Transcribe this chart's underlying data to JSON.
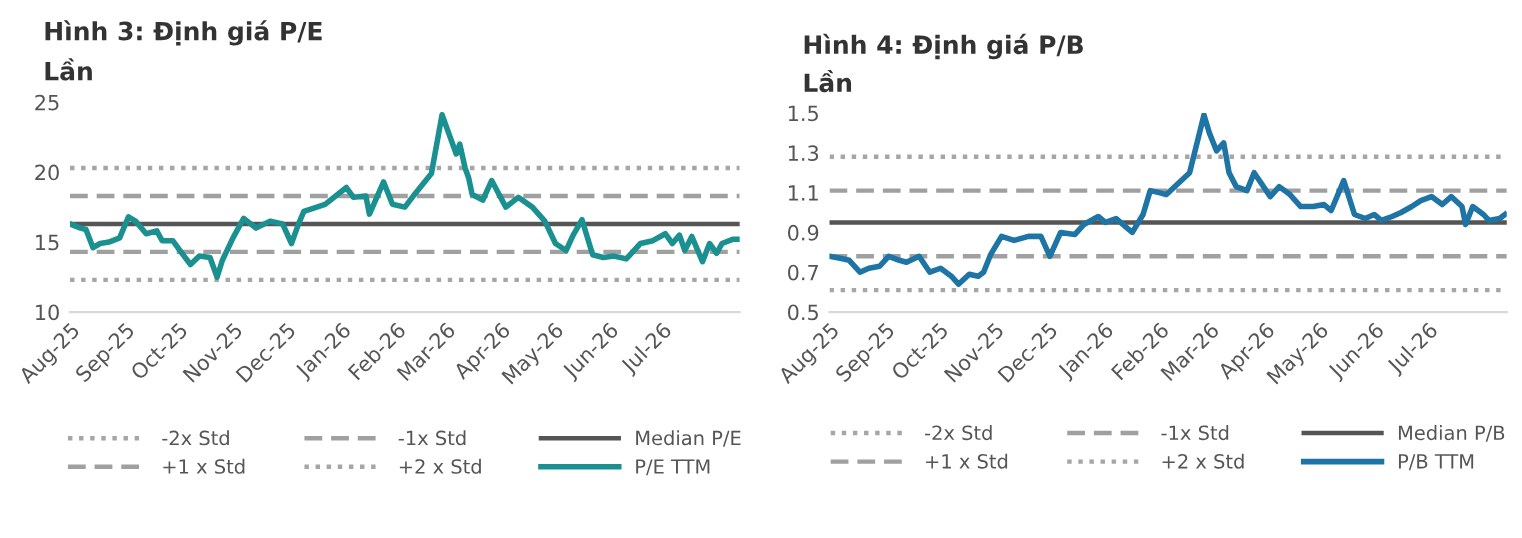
{
  "chart_data": [
    {
      "type": "line",
      "title": "Hình 3: Định giá P/E",
      "ylabel": "Lần",
      "legend": "bottom",
      "ylim": [
        10,
        25
      ],
      "yticks": [
        10,
        15,
        20,
        25
      ],
      "xlim": [
        "2025-08-01",
        "2026-08-14"
      ],
      "xticks": [
        {
          "value": "2025-08-01",
          "label": "Aug-25"
        },
        {
          "value": "2025-09-01",
          "label": "Sep-25"
        },
        {
          "value": "2025-10-01",
          "label": "Oct-25"
        },
        {
          "value": "2025-11-01",
          "label": "Nov-25"
        },
        {
          "value": "2025-12-01",
          "label": "Dec-25"
        },
        {
          "value": "2026-01-01",
          "label": "Jan-26"
        },
        {
          "value": "2026-02-01",
          "label": "Feb-26"
        },
        {
          "value": "2026-03-01",
          "label": "Mar-26"
        },
        {
          "value": "2026-04-01",
          "label": "Apr-26"
        },
        {
          "value": "2026-05-01",
          "label": "May-26"
        },
        {
          "value": "2026-06-01",
          "label": "Jun-26"
        },
        {
          "value": "2026-07-01",
          "label": "Jul-26"
        }
      ],
      "ref_lines": [
        {
          "axis": "y",
          "value": 12.3,
          "label": "-2x Std",
          "color": "#a6a6a6",
          "line_style": "dotted"
        },
        {
          "axis": "y",
          "value": 14.3,
          "label": "-1x Std",
          "color": "#a0a0a0",
          "line_style": "dashed"
        },
        {
          "axis": "y",
          "value": 16.3,
          "label": "Median P/E",
          "color": "#555555",
          "line_style": "solid"
        },
        {
          "axis": "y",
          "value": 18.3,
          "label": "+1 x Std",
          "color": "#a0a0a0",
          "line_style": "dashed"
        },
        {
          "axis": "y",
          "value": 20.3,
          "label": "+2 x Std",
          "color": "#a6a6a6",
          "line_style": "dotted"
        }
      ],
      "series": [
        {
          "name": "P/E TTM",
          "color": "#1a9090",
          "x": [
            "2025-08-01",
            "2025-08-07",
            "2025-08-10",
            "2025-08-14",
            "2025-08-18",
            "2025-08-23",
            "2025-08-29",
            "2025-09-03",
            "2025-09-07",
            "2025-09-13",
            "2025-09-19",
            "2025-09-22",
            "2025-09-28",
            "2025-10-02",
            "2025-10-08",
            "2025-10-13",
            "2025-10-19",
            "2025-10-23",
            "2025-10-26",
            "2025-11-01",
            "2025-11-07",
            "2025-11-14",
            "2025-11-22",
            "2025-11-29",
            "2025-12-04",
            "2025-12-08",
            "2025-12-11",
            "2025-12-23",
            "2026-01-04",
            "2026-01-08",
            "2026-01-15",
            "2026-01-17",
            "2026-01-25",
            "2026-01-30",
            "2026-02-06",
            "2026-02-12",
            "2026-02-21",
            "2026-02-27",
            "2026-03-03",
            "2026-03-07",
            "2026-03-09",
            "2026-03-12",
            "2026-03-14",
            "2026-03-16",
            "2026-03-22",
            "2026-03-27",
            "2026-04-04",
            "2026-04-11",
            "2026-04-19",
            "2026-04-26",
            "2026-05-02",
            "2026-05-08",
            "2026-05-12",
            "2026-05-17",
            "2026-05-23",
            "2026-05-29",
            "2026-06-04",
            "2026-06-11",
            "2026-06-19",
            "2026-06-26",
            "2026-07-03",
            "2026-07-07",
            "2026-07-11",
            "2026-07-14",
            "2026-07-18",
            "2026-07-24",
            "2026-07-28",
            "2026-08-01",
            "2026-08-04",
            "2026-08-10",
            "2026-08-13"
          ],
          "values": [
            16.3,
            16.0,
            15.9,
            14.6,
            14.9,
            15.0,
            15.3,
            16.8,
            16.5,
            15.6,
            15.8,
            15.1,
            15.1,
            14.4,
            13.4,
            14.0,
            13.9,
            12.5,
            13.7,
            15.3,
            16.7,
            16.0,
            16.5,
            16.3,
            14.9,
            16.3,
            17.2,
            17.7,
            18.9,
            18.2,
            18.3,
            17.0,
            19.3,
            17.7,
            17.5,
            18.5,
            19.9,
            24.1,
            22.7,
            21.3,
            22.0,
            20.3,
            19.6,
            18.4,
            18.0,
            19.4,
            17.5,
            18.2,
            17.5,
            16.5,
            14.9,
            14.4,
            15.5,
            16.6,
            14.1,
            13.9,
            14.0,
            13.8,
            14.9,
            15.1,
            15.6,
            14.9,
            15.5,
            14.4,
            15.4,
            13.6,
            14.9,
            14.2,
            14.9,
            15.2,
            15.2
          ]
        }
      ]
    },
    {
      "type": "line",
      "title": "Hình 4: Định giá P/B",
      "ylabel": "Lần",
      "legend": "bottom",
      "ylim": [
        0.5,
        1.5
      ],
      "yticks": [
        0.5,
        0.7,
        0.9,
        1.1,
        1.3,
        1.5
      ],
      "xlim": [
        "2025-08-01",
        "2026-08-14"
      ],
      "xticks": [
        {
          "value": "2025-08-01",
          "label": "Aug-25"
        },
        {
          "value": "2025-09-01",
          "label": "Sep-25"
        },
        {
          "value": "2025-10-01",
          "label": "Oct-25"
        },
        {
          "value": "2025-11-01",
          "label": "Nov-25"
        },
        {
          "value": "2025-12-01",
          "label": "Dec-25"
        },
        {
          "value": "2026-01-01",
          "label": "Jan-26"
        },
        {
          "value": "2026-02-01",
          "label": "Feb-26"
        },
        {
          "value": "2026-03-01",
          "label": "Mar-26"
        },
        {
          "value": "2026-04-01",
          "label": "Apr-26"
        },
        {
          "value": "2026-05-01",
          "label": "May-26"
        },
        {
          "value": "2026-06-01",
          "label": "Jun-26"
        },
        {
          "value": "2026-07-01",
          "label": "Jul-26"
        }
      ],
      "ref_lines": [
        {
          "axis": "y",
          "value": 0.61,
          "label": "-2x Std",
          "color": "#a6a6a6",
          "line_style": "dotted"
        },
        {
          "axis": "y",
          "value": 0.78,
          "label": "-1x Std",
          "color": "#a0a0a0",
          "line_style": "dashed"
        },
        {
          "axis": "y",
          "value": 0.95,
          "label": "Median P/B",
          "color": "#555555",
          "line_style": "solid"
        },
        {
          "axis": "y",
          "value": 1.11,
          "label": "+1 x Std",
          "color": "#a0a0a0",
          "line_style": "dashed"
        },
        {
          "axis": "y",
          "value": 1.28,
          "label": "+2 x Std",
          "color": "#a6a6a6",
          "line_style": "dotted"
        }
      ],
      "series": [
        {
          "name": "P/B TTM",
          "color": "#1f74a6",
          "x": [
            "2025-08-01",
            "2025-08-07",
            "2025-08-12",
            "2025-08-18",
            "2025-08-23",
            "2025-08-29",
            "2025-09-03",
            "2025-09-09",
            "2025-09-13",
            "2025-09-20",
            "2025-09-26",
            "2025-10-02",
            "2025-10-08",
            "2025-10-12",
            "2025-10-18",
            "2025-10-23",
            "2025-10-26",
            "2025-10-30",
            "2025-11-05",
            "2025-11-12",
            "2025-11-20",
            "2025-11-27",
            "2025-12-02",
            "2025-12-08",
            "2025-12-16",
            "2025-12-21",
            "2025-12-29",
            "2026-01-02",
            "2026-01-08",
            "2026-01-13",
            "2026-01-17",
            "2026-01-23",
            "2026-01-27",
            "2026-02-01",
            "2026-02-05",
            "2026-02-18",
            "2026-02-26",
            "2026-03-01",
            "2026-03-05",
            "2026-03-09",
            "2026-03-12",
            "2026-03-16",
            "2026-03-22",
            "2026-03-26",
            "2026-04-04",
            "2026-04-09",
            "2026-04-15",
            "2026-04-21",
            "2026-04-28",
            "2026-05-04",
            "2026-05-08",
            "2026-05-15",
            "2026-05-21",
            "2026-05-27",
            "2026-06-01",
            "2026-06-05",
            "2026-06-11",
            "2026-06-16",
            "2026-06-22",
            "2026-06-27",
            "2026-07-03",
            "2026-07-09",
            "2026-07-14",
            "2026-07-20",
            "2026-07-22",
            "2026-07-26",
            "2026-08-01",
            "2026-08-04",
            "2026-08-10",
            "2026-08-13"
          ],
          "values": [
            0.78,
            0.77,
            0.76,
            0.7,
            0.72,
            0.73,
            0.78,
            0.76,
            0.75,
            0.78,
            0.7,
            0.72,
            0.68,
            0.64,
            0.69,
            0.68,
            0.7,
            0.79,
            0.88,
            0.86,
            0.88,
            0.88,
            0.78,
            0.9,
            0.89,
            0.94,
            0.98,
            0.95,
            0.97,
            0.93,
            0.9,
            0.99,
            1.11,
            1.1,
            1.09,
            1.2,
            1.49,
            1.4,
            1.31,
            1.35,
            1.2,
            1.13,
            1.11,
            1.2,
            1.08,
            1.13,
            1.09,
            1.03,
            1.03,
            1.04,
            1.01,
            1.16,
            0.99,
            0.97,
            0.99,
            0.96,
            0.98,
            1.0,
            1.03,
            1.06,
            1.08,
            1.04,
            1.08,
            1.03,
            0.94,
            1.03,
            0.99,
            0.96,
            0.97,
            0.99
          ]
        }
      ]
    }
  ]
}
